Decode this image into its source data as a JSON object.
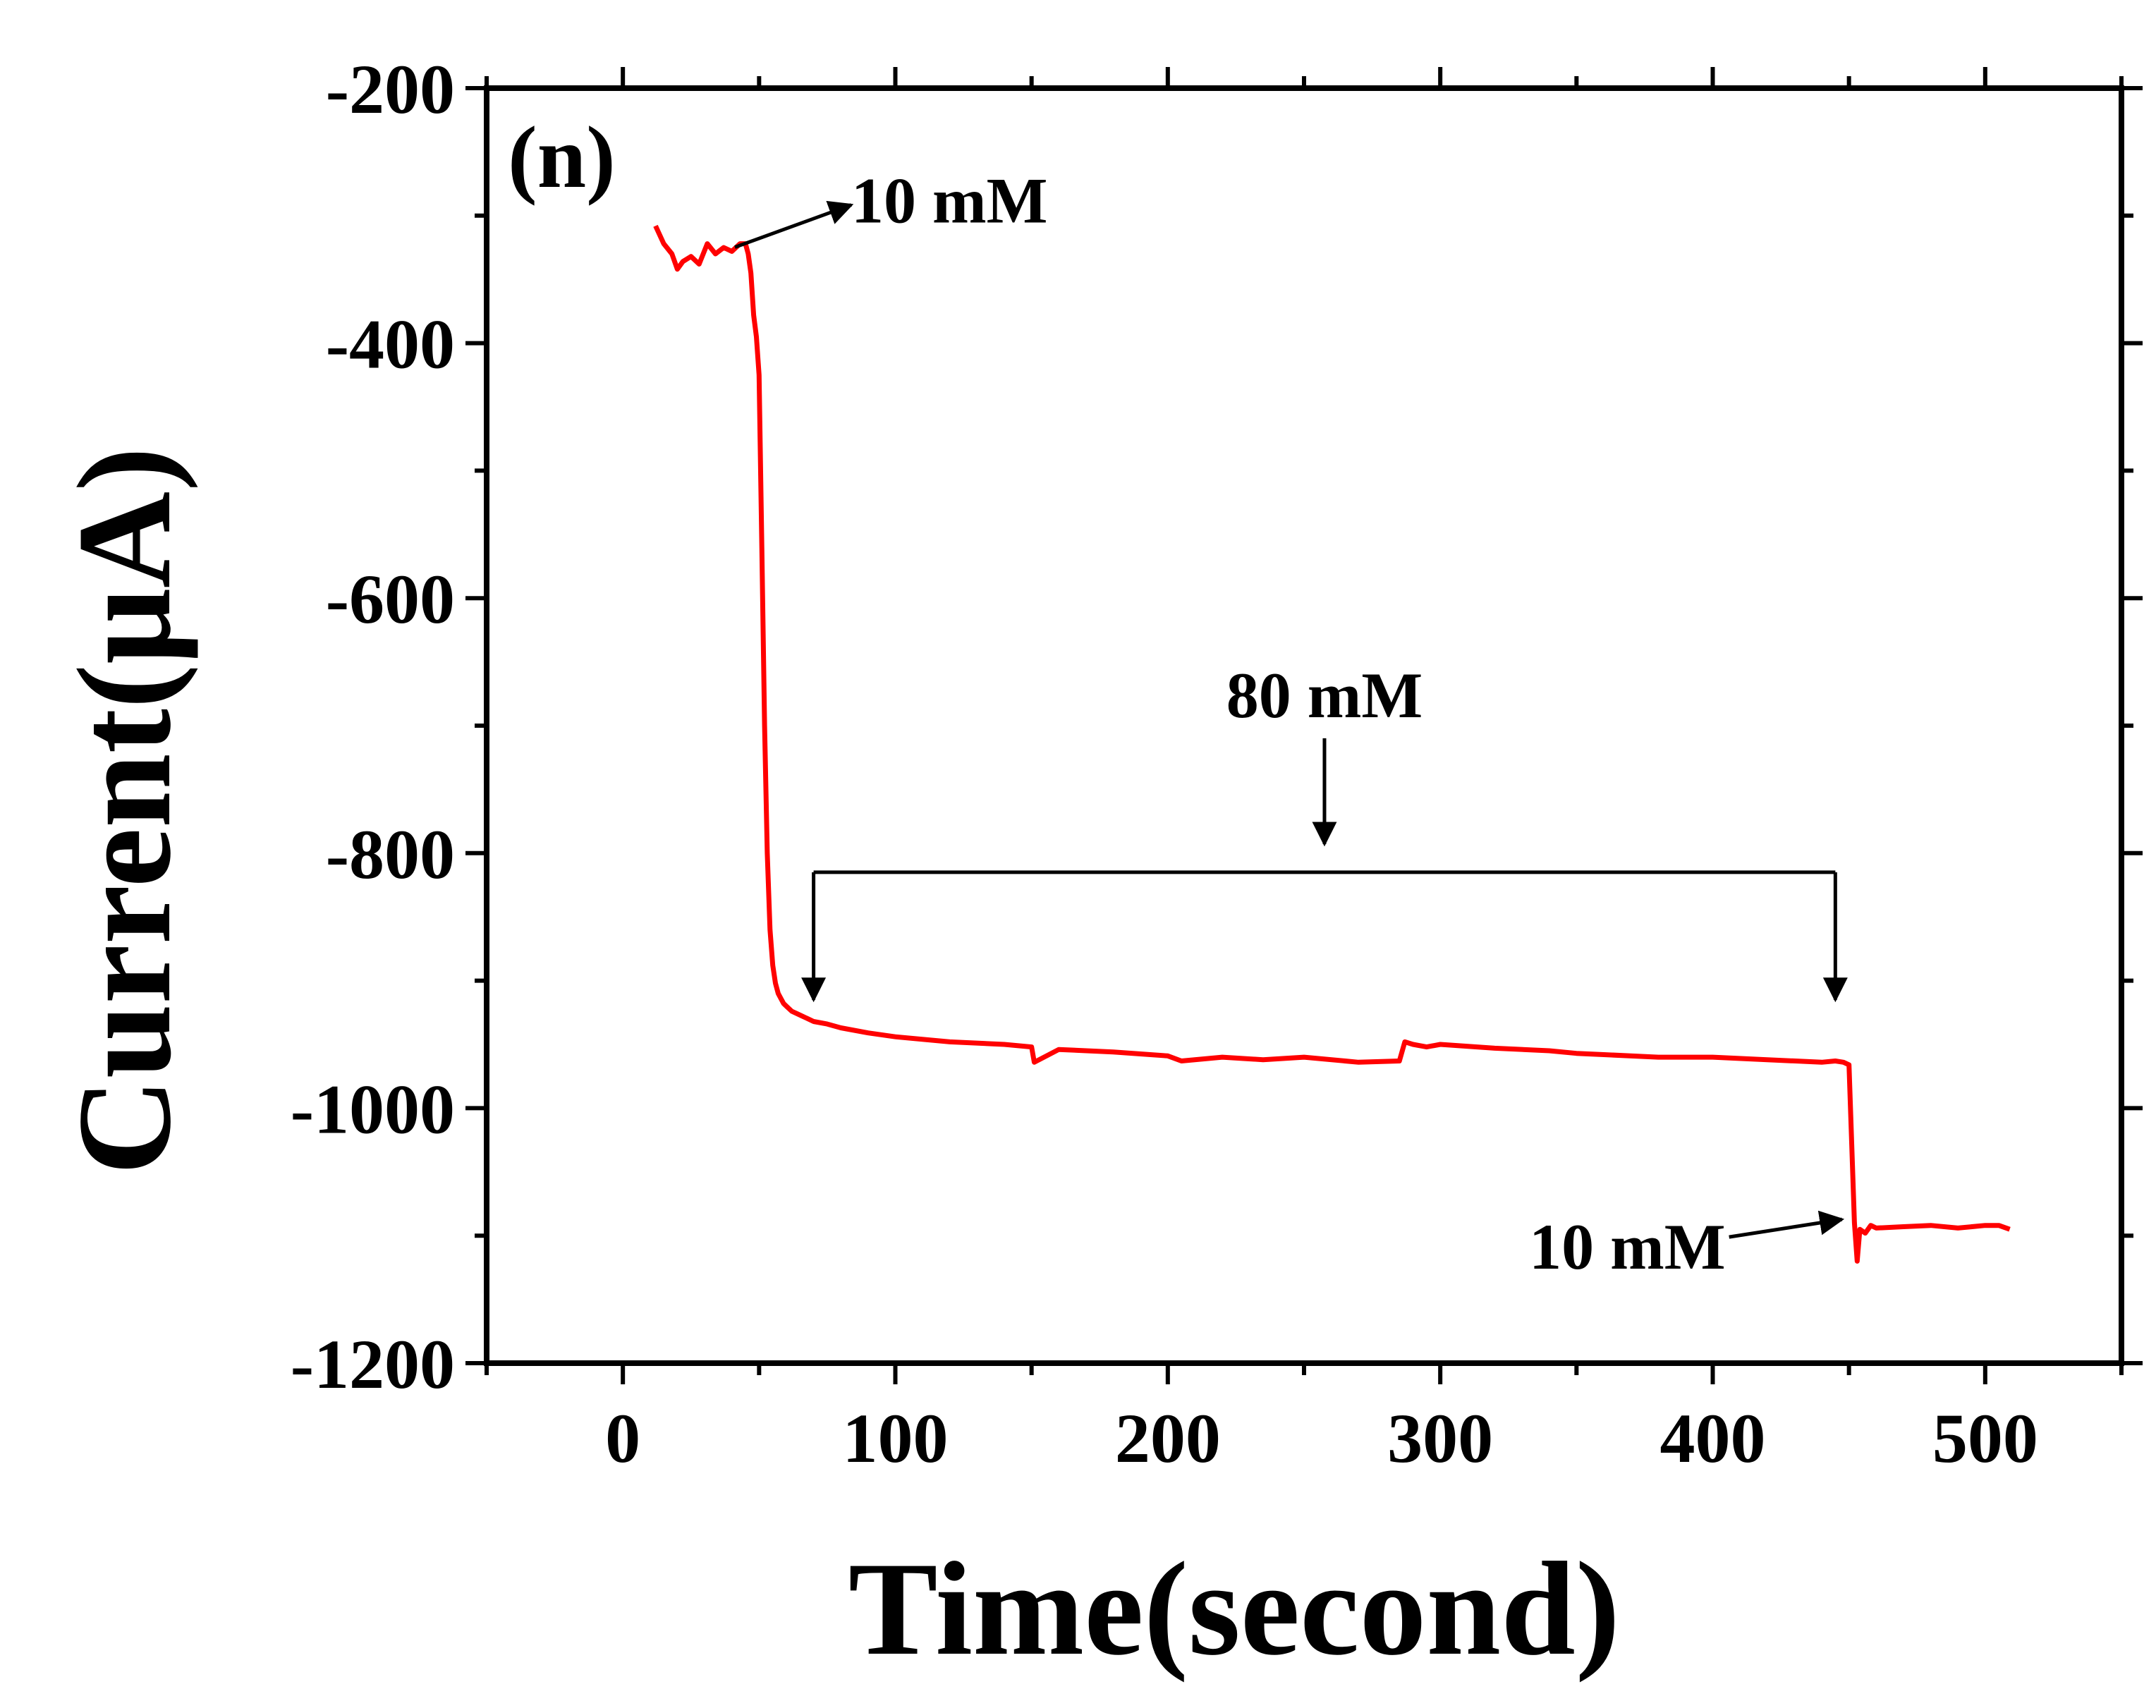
{
  "chart_data": {
    "type": "line",
    "title": "",
    "panel_label": "(n)",
    "xlabel": "Time(second)",
    "ylabel": "Current(μA)",
    "xlim": [
      -50,
      550
    ],
    "ylim": [
      -1200,
      -200
    ],
    "xticks": [
      0,
      100,
      200,
      300,
      400,
      500
    ],
    "yticks": [
      -200,
      -400,
      -600,
      -800,
      -1000,
      -1200
    ],
    "xtick_labels": [
      "0",
      "100",
      "200",
      "300",
      "400",
      "500"
    ],
    "ytick_labels": [
      "-200",
      "-400",
      "-600",
      "-800",
      "-1000",
      "-1200"
    ],
    "grid": false,
    "series": [
      {
        "name": "current",
        "color": "#ff0000",
        "x": [
          12,
          15,
          18,
          20,
          22,
          25,
          28,
          31,
          34,
          37,
          40,
          43,
          45,
          46,
          47,
          48,
          49,
          50,
          51,
          52,
          53,
          54,
          55,
          56,
          57,
          58,
          59,
          60,
          62,
          64,
          66,
          68,
          70,
          75,
          80,
          90,
          100,
          120,
          140,
          150,
          151,
          160,
          180,
          200,
          205,
          220,
          235,
          250,
          270,
          285,
          287,
          290,
          295,
          300,
          320,
          340,
          350,
          360,
          380,
          400,
          420,
          440,
          445,
          448,
          450,
          452,
          453,
          454,
          456,
          458,
          460,
          470,
          480,
          490,
          500,
          505,
          509
        ],
        "y": [
          -308,
          -322,
          -330,
          -342,
          -336,
          -332,
          -338,
          -322,
          -330,
          -325,
          -328,
          -322,
          -322,
          -330,
          -345,
          -378,
          -395,
          -425,
          -560,
          -700,
          -800,
          -860,
          -888,
          -902,
          -910,
          -914,
          -918,
          -920,
          -924,
          -926,
          -928,
          -930,
          -932,
          -934,
          -937,
          -941,
          -944,
          -948,
          -950,
          -952,
          -964,
          -954,
          -956,
          -959,
          -963,
          -960,
          -962,
          -960,
          -964,
          -963,
          -948,
          -950,
          -952,
          -950,
          -953,
          -955,
          -957,
          -958,
          -960,
          -960,
          -962,
          -964,
          -963,
          -964,
          -966,
          -1090,
          -1120,
          -1095,
          -1098,
          -1092,
          -1094,
          -1093,
          -1092,
          -1094,
          -1092,
          -1092,
          -1095
        ]
      }
    ],
    "annotations": [
      {
        "label": "10 mM",
        "tip_x": 45,
        "tip_y": -322
      },
      {
        "label": "80 mM",
        "bracket_x1": 70,
        "bracket_x2": 445,
        "bracket_y": -815,
        "arrow_tip_y": -915
      },
      {
        "label": "10 mM",
        "tip_x": 450,
        "tip_y": -1090
      }
    ]
  }
}
